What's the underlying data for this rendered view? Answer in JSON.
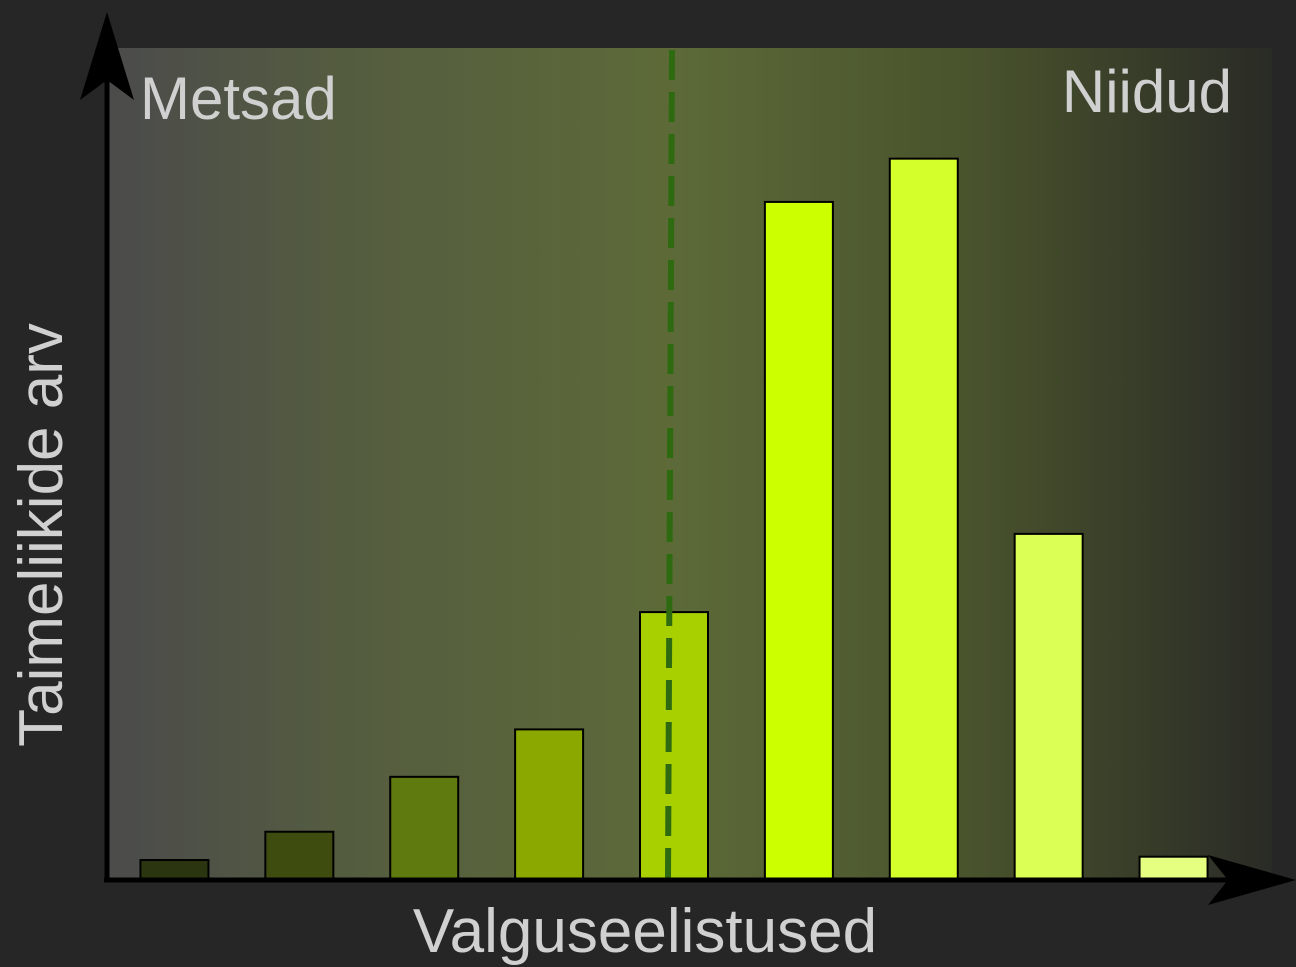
{
  "chart_data": {
    "type": "bar",
    "annotations": [
      "Metsad",
      "Niidud"
    ],
    "x_label": "Valguseelistused",
    "y_label": "Taimeliikide arv",
    "categories": [
      null,
      null,
      null,
      null,
      null,
      null,
      null,
      null,
      null
    ],
    "values": [
      2.4,
      5.8,
      12.4,
      18.1,
      32.2,
      81.5,
      86.7,
      41.6,
      2.8
    ],
    "colors": [
      "#2b3510",
      "#3e4c10",
      "#5f7a0e",
      "#8aa800",
      "#a8d000",
      "#ccff00",
      "#d4ff2a",
      "#dcff55",
      "#e5ff80"
    ],
    "ylim": [
      0,
      100
    ]
  }
}
